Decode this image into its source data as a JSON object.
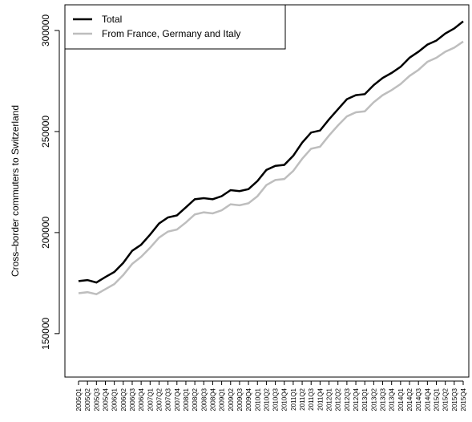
{
  "chart_data": {
    "type": "line",
    "y_label": "Cross–border commuters to Switzerland",
    "categories": [
      "2005Q1",
      "2005Q2",
      "2005Q3",
      "2005Q4",
      "2006Q1",
      "2006Q2",
      "2006Q3",
      "2006Q4",
      "2007Q1",
      "2007Q2",
      "2007Q3",
      "2007Q4",
      "2008Q1",
      "2008Q2",
      "2008Q3",
      "2008Q4",
      "2009Q1",
      "2009Q2",
      "2009Q3",
      "2009Q4",
      "2010Q1",
      "2010Q2",
      "2010Q3",
      "2010Q4",
      "2011Q1",
      "2011Q2",
      "2011Q3",
      "2011Q4",
      "2012Q1",
      "2012Q2",
      "2012Q3",
      "2012Q4",
      "2013Q1",
      "2013Q2",
      "2013Q3",
      "2013Q4",
      "2014Q1",
      "2014Q2",
      "2014Q3",
      "2014Q4",
      "2015Q1",
      "2015Q2",
      "2015Q3",
      "2015Q4"
    ],
    "series": [
      {
        "name": "Total",
        "color": "#000000",
        "width": 2.5,
        "values": [
          176000,
          176500,
          175300,
          178000,
          180500,
          185000,
          191000,
          194000,
          199000,
          204500,
          207500,
          208500,
          212500,
          216500,
          217000,
          216500,
          218000,
          221000,
          220500,
          221500,
          225500,
          231000,
          233000,
          233500,
          238000,
          244500,
          249500,
          250500,
          256000,
          261000,
          266000,
          268000,
          268500,
          273000,
          276500,
          279000,
          282000,
          286500,
          289500,
          293000,
          295000,
          298500,
          301000,
          304500
        ]
      },
      {
        "name": "From France, Germany and Italy",
        "color": "#bebebe",
        "width": 2.5,
        "values": [
          170000,
          170500,
          169500,
          172000,
          174500,
          179000,
          184500,
          188000,
          192500,
          197500,
          200500,
          201500,
          205000,
          209000,
          210000,
          209500,
          211000,
          214000,
          213500,
          214500,
          218000,
          223500,
          226000,
          226500,
          230500,
          236500,
          241500,
          242500,
          248000,
          253000,
          257500,
          259500,
          260000,
          264500,
          268000,
          270500,
          273500,
          277500,
          280500,
          284500,
          286500,
          289500,
          291500,
          294500
        ]
      }
    ],
    "ylim": [
      128500,
      312700
    ],
    "yticks": [
      150000,
      200000,
      250000,
      300000
    ],
    "legend": "top-left"
  }
}
